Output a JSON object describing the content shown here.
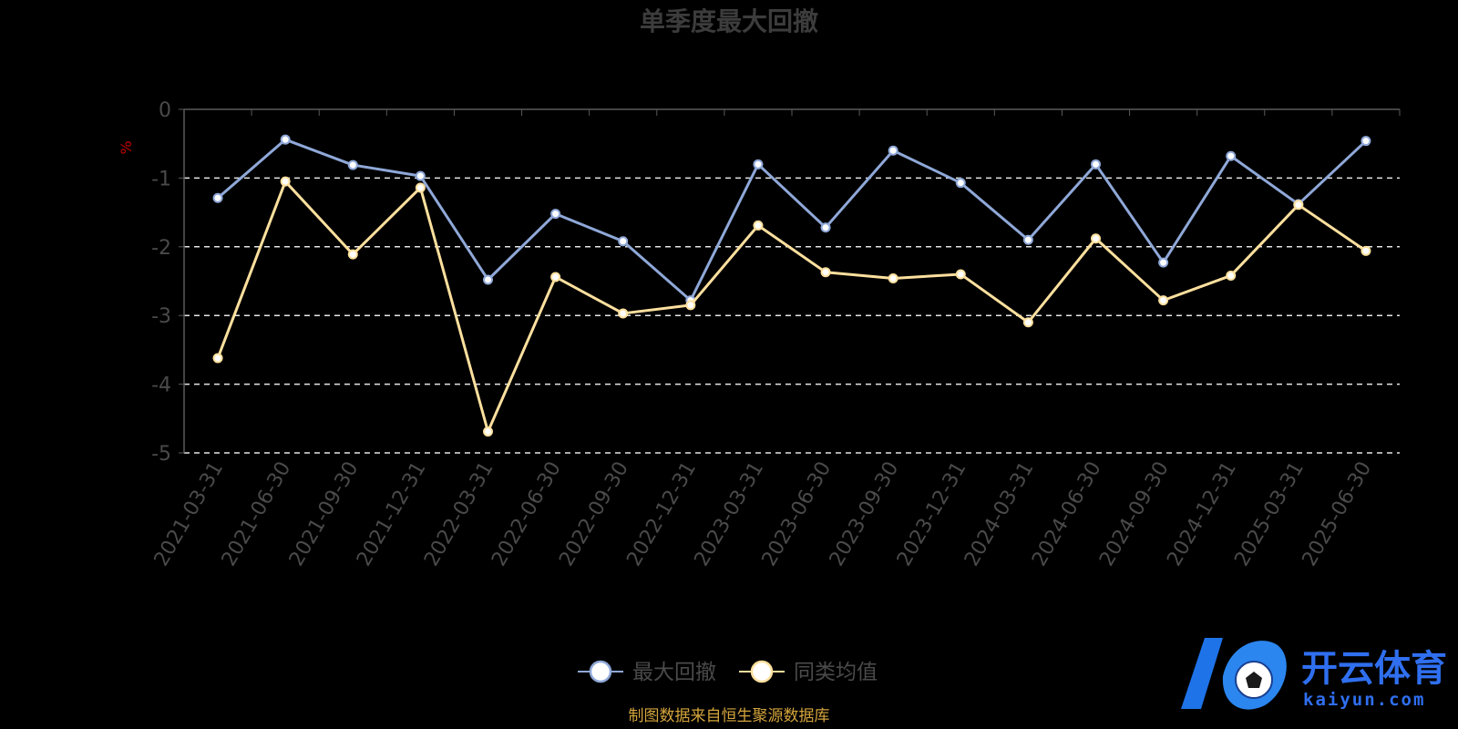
{
  "chart_data": {
    "type": "line",
    "title": "单季度最大回撤",
    "ylabel": "%",
    "ylim": [
      -5,
      0
    ],
    "yticks": [
      0,
      -1,
      -2,
      -3,
      -4,
      -5
    ],
    "grid": true,
    "legend_position": "bottom-center",
    "categories": [
      "2021-03-31",
      "2021-06-30",
      "2021-09-30",
      "2021-12-31",
      "2022-03-31",
      "2022-06-30",
      "2022-09-30",
      "2022-12-31",
      "2023-03-31",
      "2023-06-30",
      "2023-09-30",
      "2023-12-31",
      "2024-03-31",
      "2024-06-30",
      "2024-09-30",
      "2024-12-31",
      "2025-03-31",
      "2025-06-30"
    ],
    "series": [
      {
        "name": "最大回撤",
        "color": "#8fa8d8",
        "values": [
          -1.29,
          -0.44,
          -0.81,
          -0.97,
          -2.48,
          -1.52,
          -1.92,
          -2.78,
          -0.8,
          -1.72,
          -0.6,
          -1.07,
          -1.9,
          -0.8,
          -2.23,
          -0.68,
          -1.38,
          -0.46
        ]
      },
      {
        "name": "同类均值",
        "color": "#fde09e",
        "values": [
          -3.62,
          -1.05,
          -2.11,
          -1.14,
          -4.69,
          -2.44,
          -2.97,
          -2.85,
          -1.69,
          -2.37,
          -2.46,
          -2.4,
          -3.1,
          -1.88,
          -2.78,
          -2.42,
          -1.39,
          -2.06
        ]
      }
    ]
  },
  "source_note": "制图数据来自恒生聚源数据库",
  "logo": {
    "name_cn": "开云体育",
    "domain": "kaiyun.com"
  }
}
